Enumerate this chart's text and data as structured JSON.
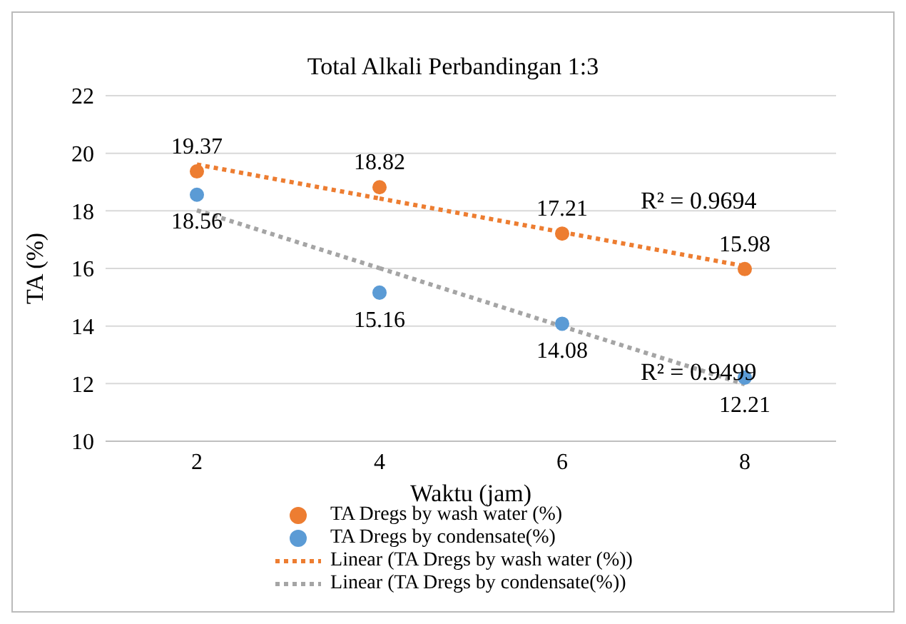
{
  "chart_data": {
    "type": "scatter",
    "title": "Total Alkali Perbandingan 1:3",
    "xlabel": "Waktu (jam)",
    "ylabel": "TA (%)",
    "x": [
      2,
      4,
      6,
      8
    ],
    "series": [
      {
        "name": "TA Dregs by wash water (%)",
        "color": "#ed7d31",
        "values": [
          19.37,
          18.82,
          17.21,
          15.98
        ],
        "value_labels": [
          "19.37",
          "18.82",
          "17.21",
          "15.98"
        ]
      },
      {
        "name": "TA Dregs by condensate(%)",
        "color": "#5b9bd5",
        "values": [
          18.56,
          15.16,
          14.08,
          12.21
        ],
        "value_labels": [
          "18.56",
          "15.16",
          "14.08",
          "12.21"
        ]
      },
      {
        "name": "Linear (TA Dregs by wash water (%))",
        "type": "line",
        "line_style": "dotted",
        "marker": "none",
        "color": "#ed7d31",
        "values": [
          19.61,
          18.43,
          17.26,
          16.08
        ]
      },
      {
        "name": "Linear (TA Dregs by condensate(%))",
        "type": "line",
        "line_style": "dotted",
        "marker": "none",
        "color": "#a5a5a5",
        "values": [
          18.02,
          16.01,
          13.99,
          11.98
        ]
      }
    ],
    "marker": "circle",
    "xlim": [
      1,
      9
    ],
    "xticks": [
      2,
      4,
      6,
      8
    ],
    "ylim": [
      10,
      22
    ],
    "yticks": [
      10,
      12,
      14,
      16,
      18,
      20,
      22
    ],
    "grid": "y",
    "legend": "bottom",
    "annotations": [
      "R² = 0.9694",
      "R² = 0.9499"
    ]
  }
}
